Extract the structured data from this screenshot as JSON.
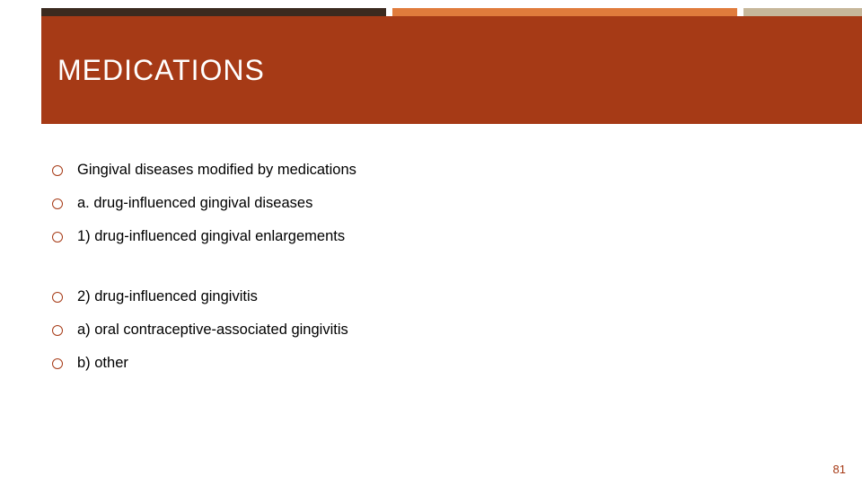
{
  "theme": {
    "header_bg": "#a63a16",
    "top_seg1_color": "#3b2a1f",
    "top_seg2_color": "#e07b3c",
    "top_seg3_color": "#c6b79a",
    "title_color": "#ffffff",
    "bullet_ring_color": "#a63a16",
    "page_num_color": "#a63a16",
    "body_text_color": "#000000",
    "title_fontsize": 32,
    "body_fontsize": 16.5
  },
  "title": "MEDICATIONS",
  "bullets": [
    {
      "text": "Gingival diseases modified by medications",
      "gap_after": false
    },
    {
      "text": "a. drug-influenced gingival diseases",
      "gap_after": false
    },
    {
      "text": "1) drug-influenced gingival enlargements",
      "gap_after": true
    },
    {
      "text": "2) drug-influenced gingivitis",
      "gap_after": false
    },
    {
      "text": "a) oral contraceptive-associated gingivitis",
      "gap_after": false
    },
    {
      "text": "b) other",
      "gap_after": false
    }
  ],
  "page_number": "81"
}
